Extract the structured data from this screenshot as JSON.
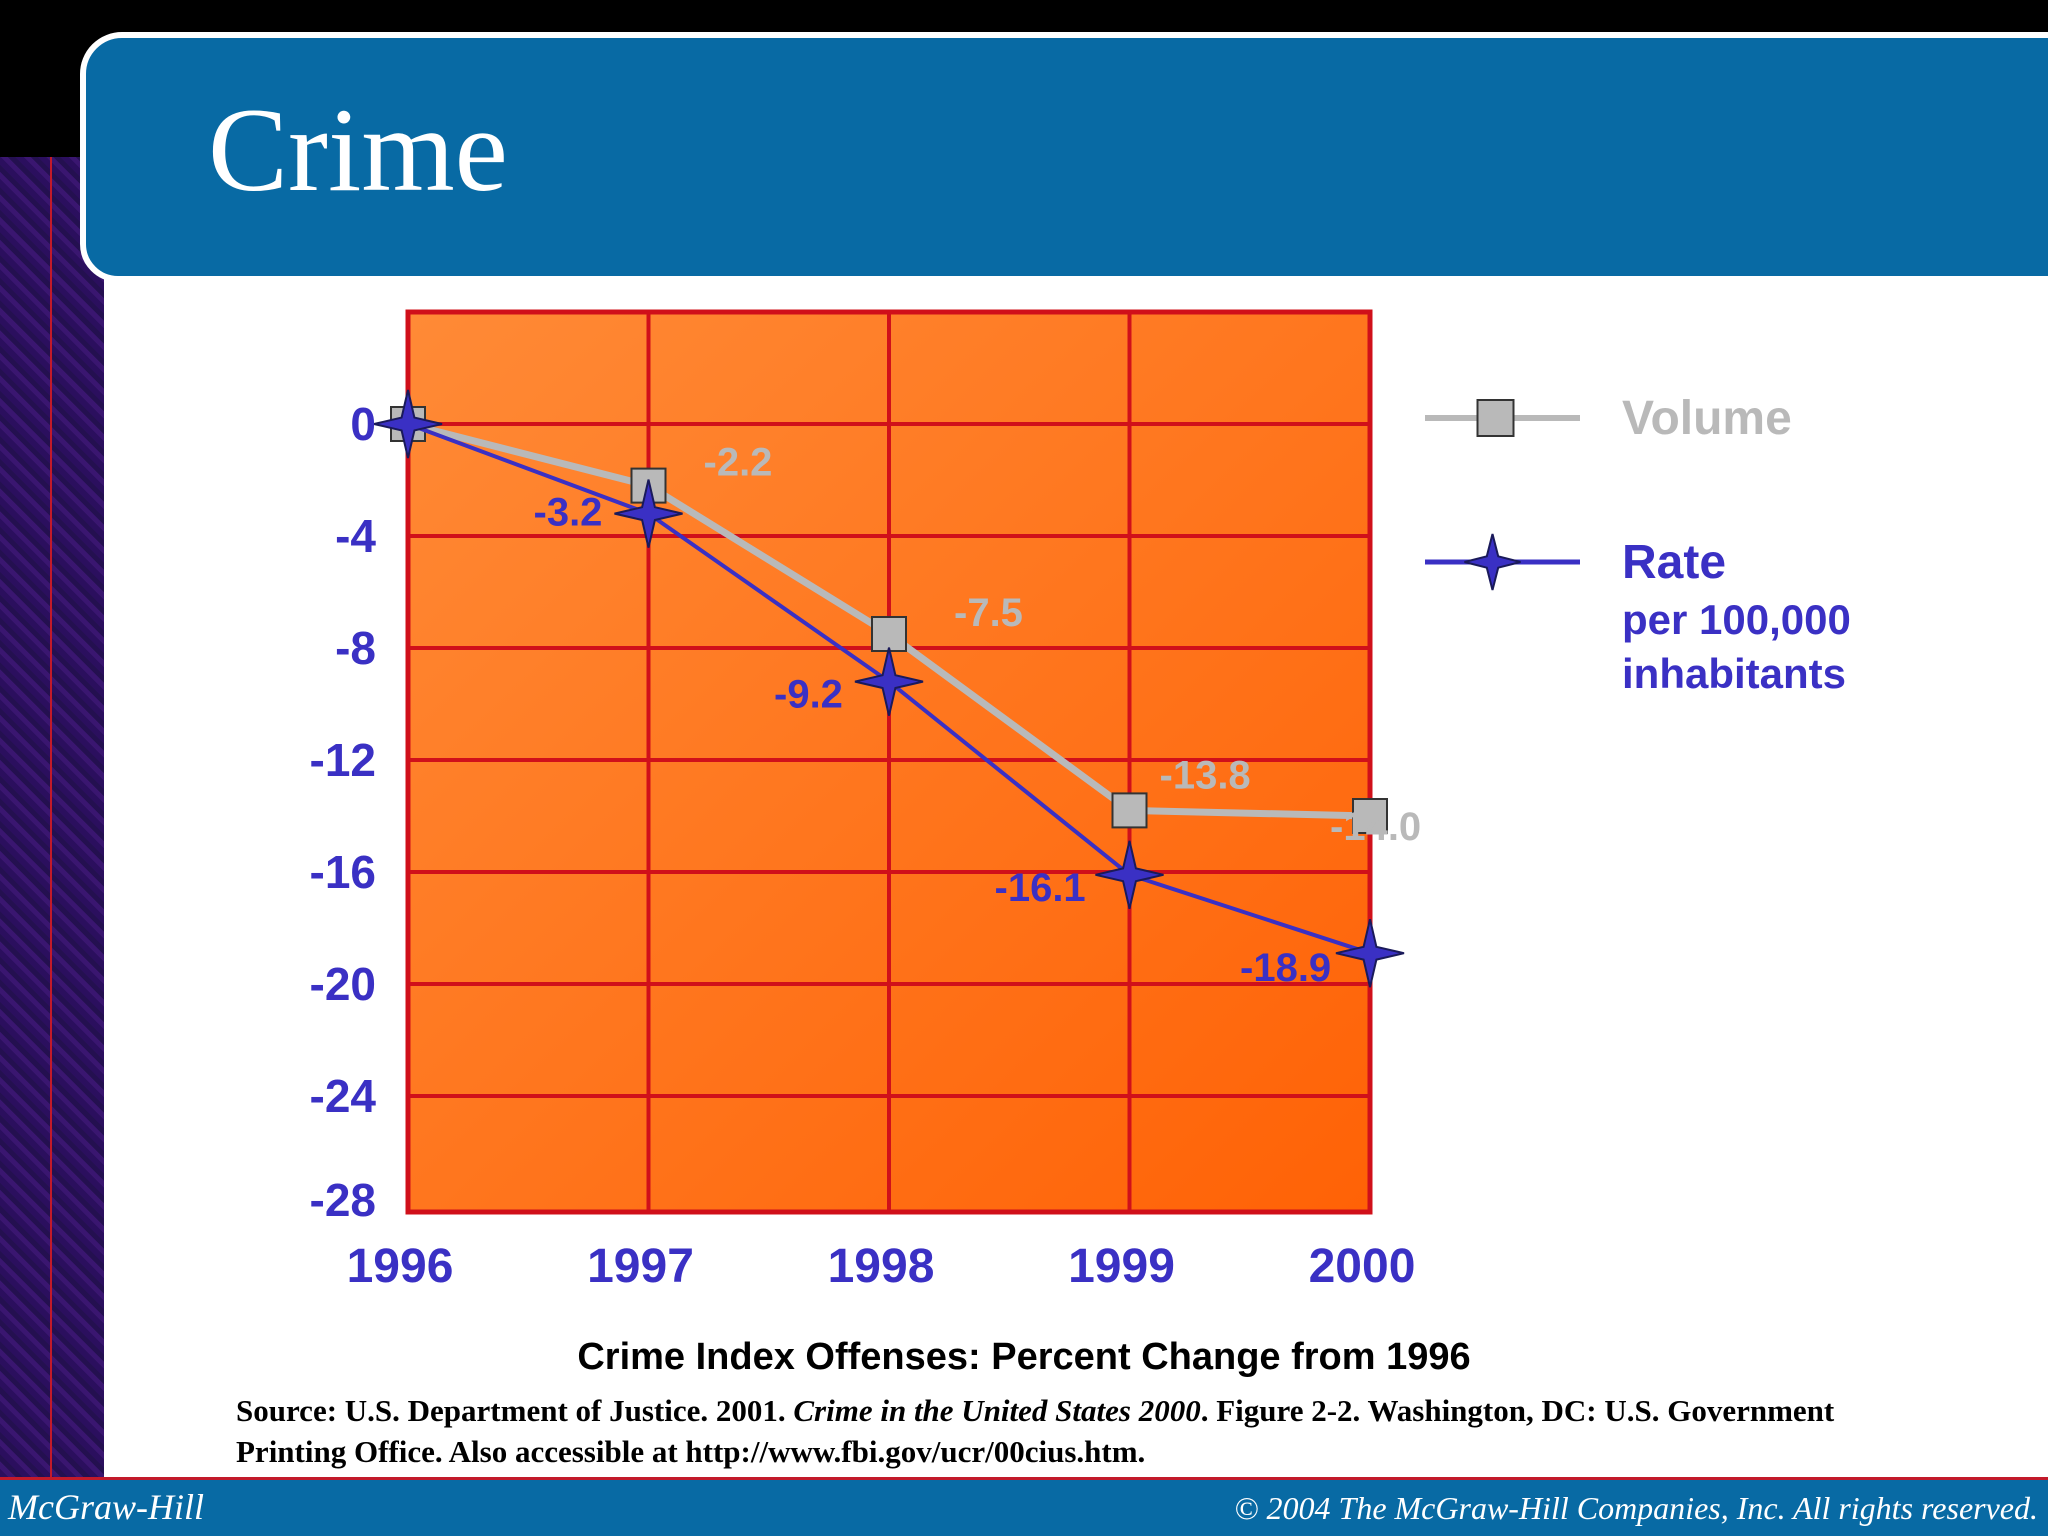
{
  "slide": {
    "title": "Crime",
    "source_prefix": "Source: U.S. Department of Justice. 2001. ",
    "source_italic": "Crime in the United States 2000",
    "source_suffix": ". Figure 2-2. Washington, DC: U.S. Government Printing Office. Also accessible at http://www.fbi.gov/ucr/00cius.htm.",
    "footer_left": "McGraw-Hill",
    "footer_right": "© 2004 The McGraw-Hill Companies, Inc. All rights reserved."
  },
  "chart_data": {
    "type": "line",
    "title": "Crime Index Offenses: Percent Change from 1996",
    "x": [
      "1996",
      "1997",
      "1998",
      "1999",
      "2000"
    ],
    "ylim": [
      -28,
      0
    ],
    "yticks": [
      0,
      -4,
      -8,
      -12,
      -16,
      -20,
      -24,
      -28
    ],
    "grid": true,
    "legend": "right",
    "series": [
      {
        "name": "Volume",
        "values": [
          0,
          -2.2,
          -7.5,
          -13.8,
          -14.0
        ],
        "labels": [
          "",
          "-2.2",
          "-7.5",
          "-13.8",
          "-14.0"
        ],
        "color": "#b9b9b9",
        "marker": "square"
      },
      {
        "name": "Rate",
        "name_sub": [
          "per 100,000",
          "inhabitants"
        ],
        "values": [
          0,
          -3.2,
          -9.2,
          -16.1,
          -18.9
        ],
        "labels": [
          "",
          "-3.2",
          "-9.2",
          "-16.1",
          "-18.9"
        ],
        "color": "#3a30c4",
        "marker": "star"
      }
    ],
    "colors": {
      "plot_bg_start": "#ff8a36",
      "plot_bg_end": "#ff6206",
      "grid": "#d0101a",
      "axis_text": "#3a30c4"
    }
  }
}
